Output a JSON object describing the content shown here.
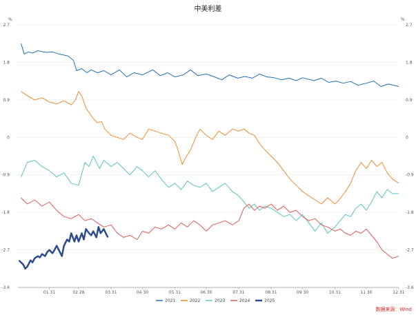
{
  "chart_data": {
    "type": "line",
    "title": "中美利差",
    "y_unit_left": "%",
    "y_unit_right": "%",
    "ylim": [
      -3.6,
      2.7
    ],
    "y_ticks": [
      "2.7",
      "1.8",
      "0.9",
      "0",
      "-0.9",
      "-1.8",
      "-2.7",
      "-3.6"
    ],
    "x_ticks": [
      "01-31",
      "02-28",
      "03-31",
      "04-30",
      "05-31",
      "06-30",
      "07-31",
      "08-31",
      "09-30",
      "10-31",
      "11-30",
      "12-31"
    ],
    "grid": "horizontal dashed",
    "legend_position": "bottom",
    "series": [
      {
        "name": "2021",
        "color": "#1f6fb5",
        "width": 1,
        "x": [
          "01-04",
          "01-07",
          "01-11",
          "01-15",
          "01-20",
          "01-25",
          "01-29",
          "02-03",
          "02-09",
          "02-18",
          "02-23",
          "02-26",
          "03-03",
          "03-08",
          "03-12",
          "03-18",
          "03-24",
          "03-31",
          "04-08",
          "04-15",
          "04-22",
          "04-30",
          "05-10",
          "05-17",
          "05-24",
          "05-31",
          "06-08",
          "06-15",
          "06-22",
          "06-30",
          "07-08",
          "07-15",
          "07-22",
          "07-30",
          "08-06",
          "08-13",
          "08-20",
          "08-27",
          "09-03",
          "09-10",
          "09-17",
          "09-24",
          "09-30",
          "10-11",
          "10-18",
          "10-25",
          "11-01",
          "11-08",
          "11-15",
          "11-22",
          "11-30",
          "12-07",
          "12-14",
          "12-21",
          "12-31"
        ],
        "values": [
          2.25,
          2.0,
          2.05,
          2.02,
          2.08,
          2.05,
          2.04,
          2.05,
          2.0,
          1.95,
          1.85,
          1.6,
          1.65,
          1.55,
          1.62,
          1.55,
          1.6,
          1.5,
          1.62,
          1.45,
          1.55,
          1.5,
          1.62,
          1.48,
          1.55,
          1.45,
          1.5,
          1.62,
          1.48,
          1.52,
          1.45,
          1.38,
          1.5,
          1.42,
          1.46,
          1.42,
          1.52,
          1.45,
          1.43,
          1.38,
          1.42,
          1.36,
          1.43,
          1.36,
          1.42,
          1.32,
          1.35,
          1.3,
          1.34,
          1.25,
          1.3,
          1.35,
          1.22,
          1.28,
          1.22
        ]
      },
      {
        "name": "2022",
        "color": "#f08b2c",
        "width": 1,
        "x": [
          "01-04",
          "01-10",
          "01-17",
          "01-24",
          "01-31",
          "02-07",
          "02-14",
          "02-21",
          "02-25",
          "02-28",
          "03-03",
          "03-07",
          "03-10",
          "03-14",
          "03-18",
          "03-22",
          "03-25",
          "03-31",
          "04-06",
          "04-12",
          "04-18",
          "04-25",
          "04-30",
          "05-06",
          "05-12",
          "05-18",
          "05-25",
          "05-31",
          "06-03",
          "06-07",
          "06-10",
          "06-15",
          "06-20",
          "06-24",
          "06-30",
          "07-06",
          "07-12",
          "07-18",
          "07-25",
          "07-31",
          "08-05",
          "08-10",
          "08-15",
          "08-20",
          "08-25",
          "08-31",
          "09-06",
          "09-12",
          "09-18",
          "09-24",
          "09-30",
          "10-06",
          "10-12",
          "10-18",
          "10-24",
          "10-31",
          "11-04",
          "11-10",
          "11-15",
          "11-20",
          "11-25",
          "11-30",
          "12-05",
          "12-10",
          "12-15",
          "12-20",
          "12-25",
          "12-31"
        ],
        "values": [
          1.1,
          1.0,
          0.9,
          0.95,
          0.85,
          0.8,
          0.88,
          0.78,
          0.9,
          1.1,
          1.0,
          0.7,
          0.6,
          0.45,
          0.35,
          0.38,
          0.2,
          0.05,
          0.0,
          -0.05,
          0.1,
          0.0,
          -0.05,
          0.2,
          0.15,
          0.1,
          0.05,
          -0.1,
          -0.3,
          -0.65,
          -0.5,
          -0.3,
          0.0,
          0.2,
          0.05,
          -0.05,
          0.15,
          0.05,
          0.2,
          0.15,
          0.2,
          0.1,
          0.05,
          -0.15,
          -0.3,
          -0.45,
          -0.6,
          -0.8,
          -1.0,
          -1.15,
          -1.3,
          -1.4,
          -1.5,
          -1.6,
          -1.45,
          -1.6,
          -1.5,
          -1.3,
          -1.1,
          -0.8,
          -0.6,
          -0.75,
          -0.55,
          -0.7,
          -0.6,
          -0.85,
          -1.0,
          -1.1
        ]
      },
      {
        "name": "2023",
        "color": "#5dc2c2",
        "width": 1,
        "x": [
          "01-04",
          "01-10",
          "01-17",
          "01-24",
          "01-31",
          "02-07",
          "02-14",
          "02-21",
          "02-28",
          "03-06",
          "03-10",
          "03-14",
          "03-20",
          "03-24",
          "03-31",
          "04-06",
          "04-12",
          "04-18",
          "04-25",
          "04-30",
          "05-06",
          "05-12",
          "05-18",
          "05-25",
          "05-31",
          "06-06",
          "06-12",
          "06-18",
          "06-24",
          "06-30",
          "07-06",
          "07-12",
          "07-18",
          "07-25",
          "07-31",
          "08-05",
          "08-10",
          "08-15",
          "08-20",
          "08-25",
          "08-31",
          "09-06",
          "09-12",
          "09-18",
          "09-24",
          "09-30",
          "10-06",
          "10-12",
          "10-18",
          "10-24",
          "10-31",
          "11-05",
          "11-10",
          "11-15",
          "11-20",
          "11-25",
          "11-30",
          "12-05",
          "12-10",
          "12-15",
          "12-20",
          "12-25",
          "12-31"
        ],
        "values": [
          -0.95,
          -0.6,
          -0.55,
          -0.7,
          -0.8,
          -0.95,
          -0.85,
          -1.1,
          -1.15,
          -0.6,
          -0.7,
          -0.45,
          -0.75,
          -0.55,
          -0.7,
          -0.6,
          -0.75,
          -0.9,
          -0.7,
          -0.8,
          -0.95,
          -0.8,
          -1.0,
          -1.2,
          -1.1,
          -1.25,
          -1.05,
          -1.15,
          -1.2,
          -1.1,
          -1.3,
          -1.2,
          -1.1,
          -1.3,
          -1.4,
          -1.55,
          -1.7,
          -1.6,
          -1.75,
          -1.65,
          -1.7,
          -1.8,
          -1.9,
          -1.85,
          -2.0,
          -1.85,
          -2.05,
          -2.25,
          -2.05,
          -2.3,
          -2.15,
          -2.0,
          -1.85,
          -1.9,
          -1.7,
          -1.6,
          -1.75,
          -1.55,
          -1.3,
          -1.45,
          -1.25,
          -1.35,
          -1.35
        ]
      },
      {
        "name": "2024",
        "color": "#e05a5a",
        "width": 1,
        "x": [
          "01-04",
          "01-10",
          "01-17",
          "01-24",
          "01-31",
          "02-07",
          "02-14",
          "02-21",
          "02-28",
          "03-06",
          "03-12",
          "03-18",
          "03-24",
          "03-31",
          "04-06",
          "04-12",
          "04-18",
          "04-25",
          "04-30",
          "05-06",
          "05-12",
          "05-18",
          "05-25",
          "05-31",
          "06-06",
          "06-12",
          "06-18",
          "06-24",
          "06-30",
          "07-06",
          "07-12",
          "07-18",
          "07-25",
          "07-31",
          "08-05",
          "08-10",
          "08-15",
          "08-20",
          "08-25",
          "08-31",
          "09-06",
          "09-12",
          "09-18",
          "09-24",
          "09-30",
          "10-06",
          "10-12",
          "10-18",
          "10-24",
          "10-31",
          "11-05",
          "11-10",
          "11-15",
          "11-20",
          "11-25",
          "11-30",
          "12-05",
          "12-10",
          "12-15",
          "12-20",
          "12-25",
          "12-31"
        ],
        "values": [
          -1.45,
          -1.6,
          -1.5,
          -1.65,
          -1.55,
          -1.75,
          -1.9,
          -1.95,
          -1.85,
          -2.0,
          -1.95,
          -2.05,
          -2.15,
          -2.1,
          -2.3,
          -2.4,
          -2.35,
          -2.45,
          -2.25,
          -2.3,
          -2.15,
          -2.2,
          -2.1,
          -2.2,
          -2.05,
          -2.15,
          -2.0,
          -2.1,
          -2.25,
          -2.1,
          -2.05,
          -2.0,
          -2.1,
          -2.0,
          -1.7,
          -1.6,
          -1.75,
          -1.65,
          -1.7,
          -1.6,
          -1.75,
          -1.65,
          -1.8,
          -1.75,
          -1.9,
          -2.0,
          -1.95,
          -2.1,
          -2.15,
          -2.25,
          -2.2,
          -2.3,
          -2.35,
          -2.25,
          -2.3,
          -2.2,
          -2.35,
          -2.5,
          -2.7,
          -2.8,
          -2.9,
          -2.85
        ]
      },
      {
        "name": "2025",
        "color": "#2c4a8c",
        "width": 2.5,
        "x": [
          "01-02",
          "01-04",
          "01-06",
          "01-08",
          "01-10",
          "01-13",
          "01-15",
          "01-17",
          "01-20",
          "01-22",
          "01-24",
          "01-27",
          "01-29",
          "01-31",
          "02-03",
          "02-05",
          "02-07",
          "02-10",
          "02-12",
          "02-14",
          "02-17",
          "02-19",
          "02-21",
          "02-24",
          "02-26",
          "02-28",
          "03-03",
          "03-05",
          "03-07",
          "03-10",
          "03-12",
          "03-14",
          "03-17",
          "03-19",
          "03-21",
          "03-24",
          "03-26",
          "03-28"
        ],
        "values": [
          -2.95,
          -3.0,
          -3.05,
          -3.15,
          -3.1,
          -2.95,
          -3.0,
          -2.9,
          -2.85,
          -2.88,
          -2.8,
          -2.85,
          -2.75,
          -2.7,
          -2.78,
          -2.7,
          -2.6,
          -2.75,
          -2.85,
          -2.6,
          -2.45,
          -2.5,
          -2.3,
          -2.5,
          -2.35,
          -2.5,
          -2.3,
          -2.45,
          -2.2,
          -2.3,
          -2.35,
          -2.25,
          -2.4,
          -2.15,
          -2.3,
          -2.2,
          -2.3,
          -2.4
        ]
      }
    ],
    "source": "数据来源：Wind"
  }
}
